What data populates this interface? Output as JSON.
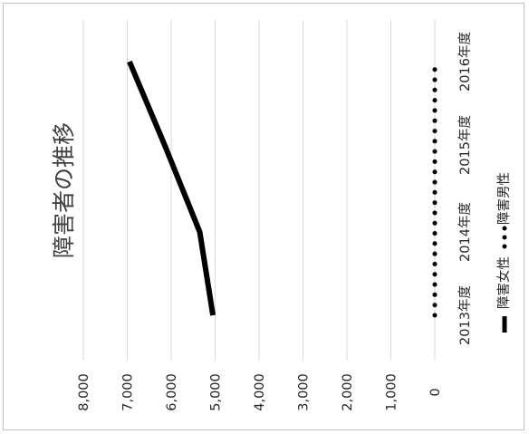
{
  "chart_data": {
    "type": "line",
    "title": "障害者の推移",
    "categories": [
      "2013年度",
      "2014年度",
      "2015年度",
      "2016年度"
    ],
    "series": [
      {
        "name": "障害女性",
        "values": [
          5050,
          5350,
          6150,
          6950
        ],
        "color": "#000000",
        "style": "solid"
      },
      {
        "name": "障害男性",
        "values": [
          0,
          0,
          0,
          0
        ],
        "color": "#000000",
        "style": "dotted"
      }
    ],
    "ylim": [
      0,
      8000
    ],
    "yticks": [
      "0",
      "1,000",
      "2,000",
      "3,000",
      "4,000",
      "5,000",
      "6,000",
      "7,000",
      "8,000"
    ],
    "ytick_values": [
      0,
      1000,
      2000,
      3000,
      4000,
      5000,
      6000,
      7000,
      8000
    ],
    "grid": true,
    "legend_position": "bottom",
    "orientation": "rotated-90-clockwise"
  }
}
